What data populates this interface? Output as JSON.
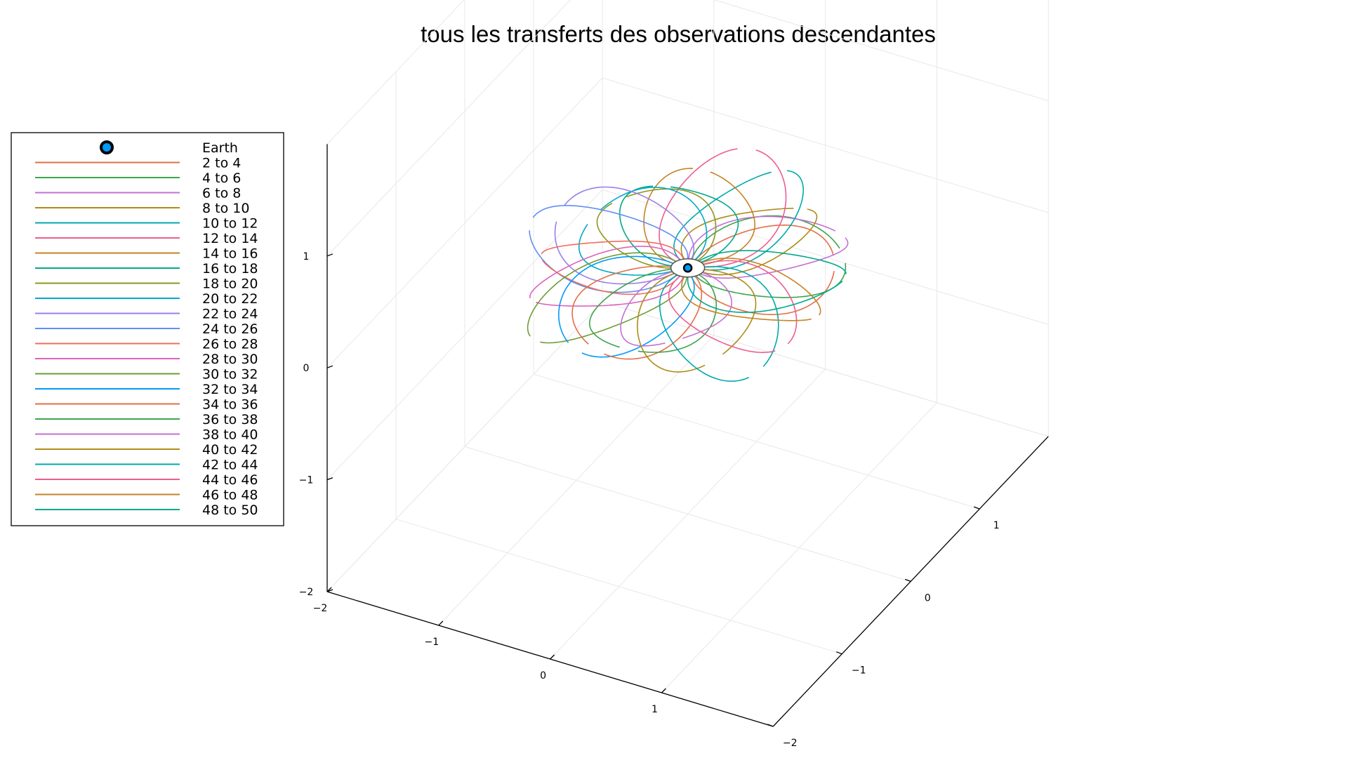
{
  "chart_data": {
    "type": "line",
    "title": "tous les transferts des observations descendantes",
    "projection": "3d",
    "grid": true,
    "legend_position": "top-left",
    "xlim": [
      -2,
      2
    ],
    "ylim": [
      -2,
      2
    ],
    "zlim": [
      -2,
      2
    ],
    "x_ticks": [
      "−2",
      "−1",
      "0",
      "1"
    ],
    "y_ticks": [
      "−2",
      "−1",
      "0",
      "1"
    ],
    "z_ticks": [
      "−2",
      "−1",
      "0",
      "1"
    ],
    "earth": {
      "name": "Earth",
      "x": 0,
      "y": 0,
      "z": 0,
      "color": "#009AFA",
      "edge_color": "#000000"
    },
    "series": [
      {
        "name": "2 to 4",
        "color": "#E26F46"
      },
      {
        "name": "4 to 6",
        "color": "#3DA44D"
      },
      {
        "name": "6 to 8",
        "color": "#C271D2"
      },
      {
        "name": "8 to 10",
        "color": "#AC8D18"
      },
      {
        "name": "10 to 12",
        "color": "#00A9AD"
      },
      {
        "name": "12 to 14",
        "color": "#ED5D92"
      },
      {
        "name": "14 to 16",
        "color": "#C68225"
      },
      {
        "name": "16 to 18",
        "color": "#00A98D"
      },
      {
        "name": "18 to 20",
        "color": "#8E971D"
      },
      {
        "name": "20 to 22",
        "color": "#00A8CB"
      },
      {
        "name": "22 to 24",
        "color": "#9B7FE9"
      },
      {
        "name": "24 to 26",
        "color": "#618DF6"
      },
      {
        "name": "26 to 28",
        "color": "#F16C5E"
      },
      {
        "name": "28 to 30",
        "color": "#DC63BB"
      },
      {
        "name": "30 to 32",
        "color": "#6D9E33"
      },
      {
        "name": "32 to 34",
        "color": "#009AFA"
      },
      {
        "name": "34 to 36",
        "color": "#E26F46"
      },
      {
        "name": "36 to 38",
        "color": "#3DA44D"
      },
      {
        "name": "38 to 40",
        "color": "#C271D2"
      },
      {
        "name": "40 to 42",
        "color": "#AC8D18"
      },
      {
        "name": "42 to 44",
        "color": "#00A9AD"
      },
      {
        "name": "44 to 46",
        "color": "#ED5D92"
      },
      {
        "name": "46 to 48",
        "color": "#C68225"
      },
      {
        "name": "48 to 50",
        "color": "#00A98D"
      }
    ]
  }
}
